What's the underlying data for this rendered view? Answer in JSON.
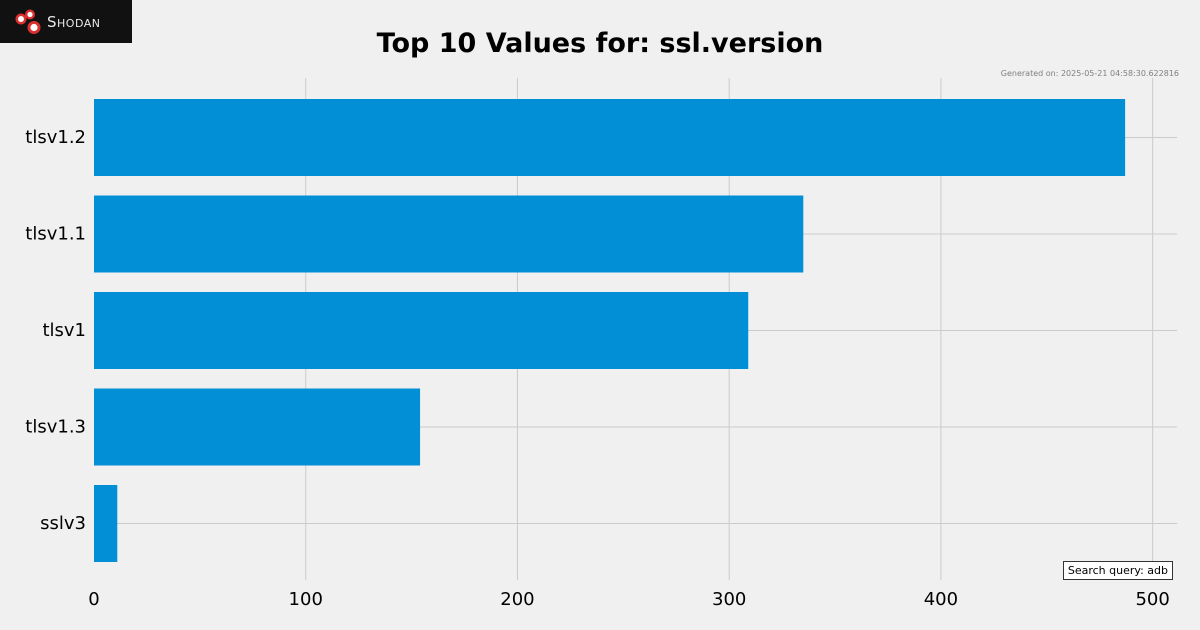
{
  "brand": {
    "name": "Shodan"
  },
  "generated_label": "Generated on: 2025-05-21 04:58:30.622816",
  "search_query_label": "Search query: adb",
  "colors": {
    "bar": "#038fd6",
    "grid": "#cbcbcb",
    "background": "#f0f0f0"
  },
  "chart_data": {
    "type": "bar",
    "orientation": "horizontal",
    "title": "Top 10 Values for: ssl.version",
    "categories": [
      "tlsv1.2",
      "tlsv1.1",
      "tlsv1",
      "tlsv1.3",
      "sslv3"
    ],
    "values": [
      487,
      335,
      309,
      154,
      11
    ],
    "xlim": [
      0,
      500
    ],
    "xticks": [
      0,
      100,
      200,
      300,
      400,
      500
    ],
    "grid": true,
    "legend": "none"
  }
}
